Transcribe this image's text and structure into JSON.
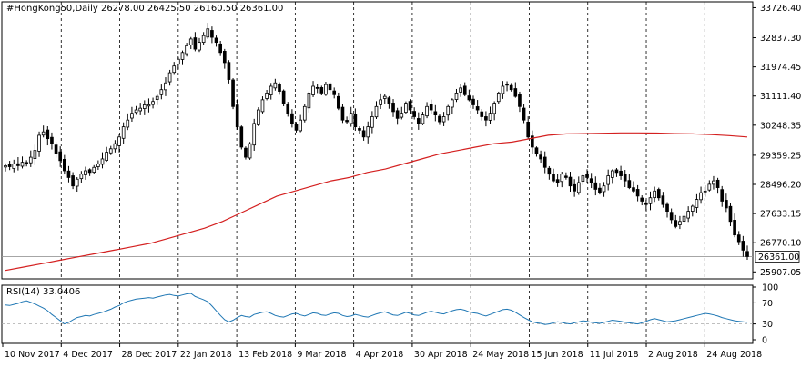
{
  "header": {
    "symbol": "#HongKong50,Daily",
    "open": "26278.00",
    "high": "26425.50",
    "low": "26160.50",
    "close": "26361.00"
  },
  "rsi_label": "RSI(14) 33.0406",
  "colors": {
    "bull": "#000000",
    "bear": "#000000",
    "ma": "#d42020",
    "rsi": "#1f77b4",
    "grid": "#000000",
    "price_box": "#ffffff"
  },
  "chart_data": [
    {
      "type": "candlestick",
      "title": "#HongKong50,Daily",
      "y_ticks": [
        "33726.40",
        "32837.30",
        "31974.45",
        "31111.40",
        "30248.35",
        "29359.25",
        "28496.20",
        "27633.15",
        "26770.10",
        "25907.05"
      ],
      "ylim": [
        25700,
        33900
      ],
      "last_price_label": "26361.00",
      "x_ticks": [
        "10 Nov 2017",
        "4 Dec 2017",
        "28 Dec 2017",
        "22 Jan 2018",
        "13 Feb 2018",
        "9 Mar 2018",
        "4 Apr 2018",
        "30 Apr 2018",
        "24 May 2018",
        "15 Jun 2018",
        "11 Jul 2018",
        "2 Aug 2018",
        "24 Aug 2018"
      ],
      "grid": "vertical dashed at date ticks",
      "series": [
        {
          "name": "#HongKong50",
          "kind": "close",
          "values": [
            29050,
            29020,
            29100,
            29050,
            29150,
            29120,
            29300,
            29500,
            29950,
            30050,
            29850,
            29700,
            29400,
            29200,
            28900,
            28700,
            28450,
            28650,
            28800,
            28900,
            28850,
            29000,
            29100,
            29250,
            29450,
            29550,
            29700,
            29900,
            30200,
            30400,
            30600,
            30700,
            30750,
            30850,
            30850,
            30950,
            31100,
            31300,
            31500,
            31800,
            32000,
            32200,
            32400,
            32600,
            32800,
            32500,
            32700,
            32900,
            33100,
            32850,
            32700,
            32400,
            32100,
            31600,
            30800,
            30200,
            29600,
            29300,
            29700,
            30300,
            30700,
            31000,
            31200,
            31400,
            31500,
            31250,
            30900,
            30600,
            30300,
            30100,
            30400,
            30800,
            31200,
            31400,
            31350,
            31200,
            31450,
            31300,
            31150,
            30750,
            30400,
            30350,
            30600,
            30200,
            30100,
            29900,
            30200,
            30500,
            30800,
            31000,
            31100,
            30900,
            30650,
            30450,
            30600,
            30900,
            30700,
            30500,
            30300,
            30550,
            30800,
            30700,
            30550,
            30350,
            30500,
            30800,
            31000,
            31200,
            31350,
            31150,
            31000,
            30850,
            30700,
            30500,
            30400,
            30600,
            30900,
            31200,
            31400,
            31450,
            31300,
            31100,
            30800,
            30400,
            29900,
            29600,
            29400,
            29250,
            29000,
            28800,
            28600,
            28550,
            28800,
            28700,
            28450,
            28300,
            28550,
            28750,
            28700,
            28550,
            28350,
            28250,
            28450,
            28750,
            28900,
            28850,
            28750,
            28600,
            28400,
            28300,
            28150,
            28000,
            27900,
            28100,
            28300,
            28100,
            27900,
            27700,
            27450,
            27250,
            27400,
            27550,
            27700,
            27850,
            28050,
            28250,
            28300,
            28500,
            28600,
            28400,
            28000,
            27800,
            27400,
            27000,
            26800,
            26550,
            26361
          ]
        },
        {
          "name": "MA",
          "kind": "moving-average",
          "values": [
            25950,
            26050,
            26150,
            26250,
            26350,
            26450,
            26550,
            26650,
            26750,
            26900,
            27050,
            27200,
            27400,
            27650,
            27900,
            28150,
            28300,
            28450,
            28600,
            28700,
            28850,
            28950,
            29100,
            29250,
            29400,
            29500,
            29600,
            29700,
            29750,
            29850,
            29950,
            29990,
            30000,
            30010,
            30020,
            30020,
            30015,
            30000,
            29990,
            29970,
            29940,
            29900
          ]
        }
      ]
    },
    {
      "type": "line",
      "title": "RSI(14) 33.0406",
      "y_ticks": [
        "100",
        "70",
        "30",
        "0"
      ],
      "ylim": [
        0,
        100
      ],
      "levels": [
        70,
        30
      ],
      "series": [
        {
          "name": "RSI(14)",
          "values": [
            66,
            65,
            67,
            69,
            72,
            74,
            71,
            68,
            64,
            60,
            55,
            48,
            42,
            36,
            30,
            33,
            38,
            42,
            44,
            46,
            45,
            48,
            50,
            52,
            55,
            58,
            62,
            65,
            70,
            73,
            75,
            77,
            78,
            79,
            80,
            79,
            81,
            83,
            85,
            86,
            84,
            83,
            85,
            87,
            88,
            82,
            79,
            76,
            72,
            64,
            55,
            46,
            38,
            34,
            37,
            42,
            46,
            44,
            43,
            48,
            50,
            52,
            53,
            50,
            46,
            44,
            43,
            46,
            49,
            50,
            47,
            45,
            48,
            51,
            50,
            47,
            46,
            49,
            51,
            50,
            46,
            44,
            45,
            48,
            46,
            44,
            43,
            46,
            49,
            51,
            53,
            50,
            47,
            46,
            49,
            52,
            50,
            47,
            46,
            49,
            52,
            54,
            52,
            50,
            49,
            52,
            55,
            57,
            58,
            56,
            53,
            51,
            50,
            47,
            45,
            48,
            51,
            54,
            57,
            58,
            56,
            52,
            47,
            42,
            38,
            34,
            32,
            31,
            29,
            30,
            32,
            34,
            33,
            31,
            30,
            32,
            34,
            36,
            35,
            33,
            32,
            31,
            33,
            35,
            37,
            36,
            35,
            33,
            32,
            31,
            30,
            32,
            35,
            38,
            40,
            38,
            36,
            34,
            35,
            36,
            38,
            40,
            42,
            44,
            46,
            48,
            50,
            49,
            47,
            45,
            42,
            40,
            38,
            36,
            35,
            34,
            33
          ]
        }
      ]
    }
  ]
}
